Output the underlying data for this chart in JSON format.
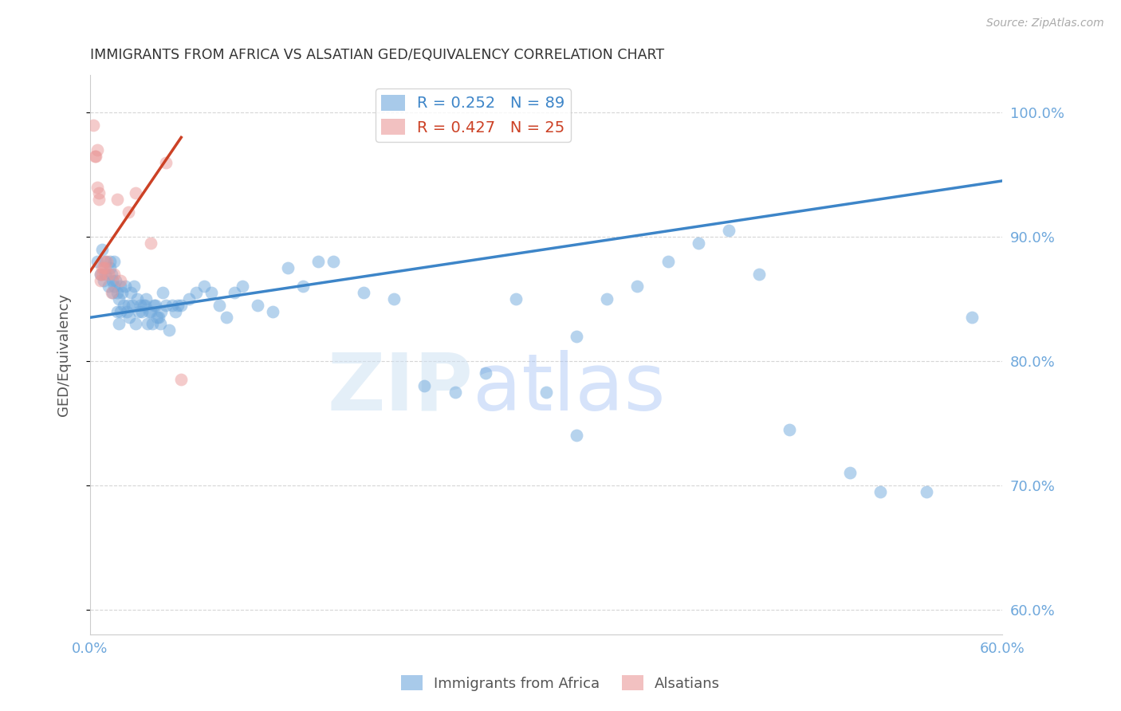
{
  "title": "IMMIGRANTS FROM AFRICA VS ALSATIAN GED/EQUIVALENCY CORRELATION CHART",
  "source": "Source: ZipAtlas.com",
  "ylabel": "GED/Equivalency",
  "ytick_labels": [
    "100.0%",
    "90.0%",
    "80.0%",
    "70.0%",
    "60.0%"
  ],
  "ytick_values": [
    1.0,
    0.9,
    0.8,
    0.7,
    0.6
  ],
  "xlim": [
    0.0,
    0.6
  ],
  "ylim": [
    0.58,
    1.03
  ],
  "legend_blue_r": "R = 0.252",
  "legend_blue_n": "N = 89",
  "legend_pink_r": "R = 0.427",
  "legend_pink_n": "N = 25",
  "legend_label_blue": "Immigrants from Africa",
  "legend_label_pink": "Alsatians",
  "blue_color": "#6fa8dc",
  "pink_color": "#ea9999",
  "trendline_blue_color": "#3d85c8",
  "trendline_pink_color": "#cc4125",
  "watermark_zip": "ZIP",
  "watermark_atlas": "atlas",
  "blue_scatter_x": [
    0.005,
    0.007,
    0.008,
    0.009,
    0.01,
    0.01,
    0.012,
    0.013,
    0.013,
    0.014,
    0.015,
    0.015,
    0.016,
    0.016,
    0.017,
    0.018,
    0.018,
    0.019,
    0.019,
    0.02,
    0.02,
    0.021,
    0.022,
    0.023,
    0.024,
    0.025,
    0.026,
    0.027,
    0.028,
    0.029,
    0.03,
    0.031,
    0.032,
    0.033,
    0.034,
    0.035,
    0.036,
    0.037,
    0.038,
    0.039,
    0.04,
    0.041,
    0.042,
    0.043,
    0.044,
    0.045,
    0.046,
    0.047,
    0.048,
    0.05,
    0.052,
    0.054,
    0.056,
    0.058,
    0.06,
    0.065,
    0.07,
    0.075,
    0.08,
    0.085,
    0.09,
    0.095,
    0.1,
    0.11,
    0.12,
    0.13,
    0.14,
    0.15,
    0.16,
    0.18,
    0.2,
    0.22,
    0.24,
    0.26,
    0.28,
    0.3,
    0.32,
    0.34,
    0.36,
    0.38,
    0.4,
    0.42,
    0.44,
    0.5,
    0.52,
    0.55,
    0.58,
    0.32,
    0.46
  ],
  "blue_scatter_y": [
    0.88,
    0.87,
    0.89,
    0.865,
    0.87,
    0.88,
    0.86,
    0.875,
    0.88,
    0.87,
    0.855,
    0.865,
    0.86,
    0.88,
    0.865,
    0.84,
    0.855,
    0.83,
    0.85,
    0.86,
    0.84,
    0.855,
    0.845,
    0.86,
    0.84,
    0.845,
    0.835,
    0.855,
    0.845,
    0.86,
    0.83,
    0.85,
    0.84,
    0.845,
    0.84,
    0.845,
    0.845,
    0.85,
    0.83,
    0.84,
    0.84,
    0.83,
    0.845,
    0.845,
    0.835,
    0.835,
    0.83,
    0.84,
    0.855,
    0.845,
    0.825,
    0.845,
    0.84,
    0.845,
    0.845,
    0.85,
    0.855,
    0.86,
    0.855,
    0.845,
    0.835,
    0.855,
    0.86,
    0.845,
    0.84,
    0.875,
    0.86,
    0.88,
    0.88,
    0.855,
    0.85,
    0.78,
    0.775,
    0.79,
    0.85,
    0.775,
    0.82,
    0.85,
    0.86,
    0.88,
    0.895,
    0.905,
    0.87,
    0.71,
    0.695,
    0.695,
    0.835,
    0.74,
    0.745
  ],
  "pink_scatter_x": [
    0.002,
    0.003,
    0.004,
    0.005,
    0.005,
    0.006,
    0.006,
    0.007,
    0.007,
    0.008,
    0.008,
    0.009,
    0.009,
    0.01,
    0.011,
    0.012,
    0.014,
    0.016,
    0.018,
    0.02,
    0.025,
    0.03,
    0.04,
    0.05,
    0.06
  ],
  "pink_scatter_y": [
    0.99,
    0.965,
    0.965,
    0.97,
    0.94,
    0.935,
    0.93,
    0.865,
    0.87,
    0.87,
    0.875,
    0.875,
    0.88,
    0.875,
    0.88,
    0.87,
    0.855,
    0.87,
    0.93,
    0.865,
    0.92,
    0.935,
    0.895,
    0.96,
    0.785
  ],
  "blue_trendline_x": [
    0.0,
    0.6
  ],
  "blue_trendline_y": [
    0.835,
    0.945
  ],
  "pink_trendline_x": [
    0.0,
    0.06
  ],
  "pink_trendline_y": [
    0.872,
    0.98
  ],
  "background_color": "#ffffff",
  "grid_color": "#cccccc",
  "title_color": "#333333",
  "tick_label_color": "#6fa8dc"
}
